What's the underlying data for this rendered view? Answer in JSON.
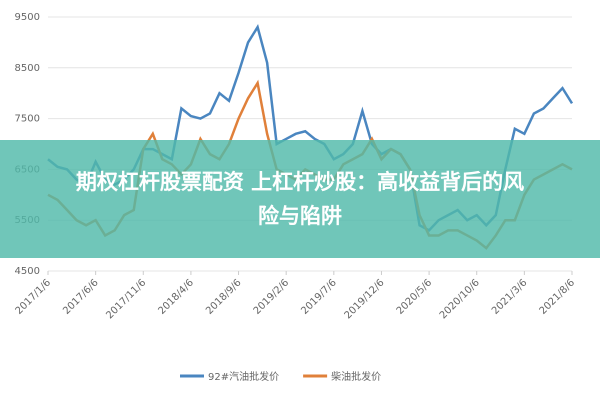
{
  "chart_data": {
    "type": "line",
    "categories": [
      "2017/1/6",
      null,
      null,
      null,
      null,
      "2017/6/6",
      null,
      null,
      null,
      null,
      "2017/11/6",
      null,
      null,
      null,
      null,
      "2018/4/6",
      null,
      null,
      null,
      null,
      "2018/9/6",
      null,
      null,
      null,
      null,
      "2019/2/6",
      null,
      null,
      null,
      null,
      "2019/7/6",
      null,
      null,
      null,
      null,
      "2019/12/6",
      null,
      null,
      null,
      null,
      "2020/5/6",
      null,
      null,
      null,
      null,
      "2020/10/6",
      null,
      null,
      null,
      null,
      "2021/3/6",
      null,
      null,
      null,
      null,
      "2021/8/6"
    ],
    "series": [
      {
        "name": "92#汽油批发价",
        "color": "#4a86c0",
        "values": [
          6700,
          6550,
          6500,
          6300,
          6200,
          6650,
          6300,
          6200,
          6300,
          6500,
          6900,
          6900,
          6800,
          6700,
          7700,
          7550,
          7500,
          7600,
          8000,
          7850,
          8400,
          9000,
          9300,
          8600,
          7000,
          7100,
          7200,
          7250,
          7100,
          7000,
          6700,
          6800,
          7000,
          7650,
          7000,
          6800,
          6900,
          6800,
          6500,
          5400,
          5300,
          5500,
          5600,
          5700,
          5500,
          5600,
          5400,
          5600,
          6500,
          7300,
          7200,
          7600,
          7700,
          7900,
          8100,
          7800
        ]
      },
      {
        "name": "柴油批发价",
        "color": "#e0803a",
        "values": [
          6000,
          5900,
          5700,
          5500,
          5400,
          5500,
          5200,
          5300,
          5600,
          5700,
          6900,
          7200,
          6700,
          6600,
          6400,
          6600,
          7100,
          6800,
          6700,
          7000,
          7500,
          7900,
          8200,
          7200,
          6500,
          6400,
          6300,
          6500,
          6400,
          6300,
          6300,
          6600,
          6700,
          6800,
          7100,
          6700,
          6900,
          6800,
          6500,
          5600,
          5200,
          5200,
          5300,
          5300,
          5200,
          5100,
          4950,
          5200,
          5500,
          5500,
          6000,
          6300,
          6400,
          6500,
          6600,
          6500
        ]
      }
    ],
    "ylim": [
      4500,
      9500
    ],
    "yticks": [
      4500,
      5500,
      6500,
      7500,
      8500,
      9500
    ],
    "grid": true,
    "legend": "bottom"
  },
  "banner": {
    "lines": [
      "期权杠杆股票配资 上杠杆炒股：高收益背后的风",
      "险与陷阱"
    ]
  }
}
